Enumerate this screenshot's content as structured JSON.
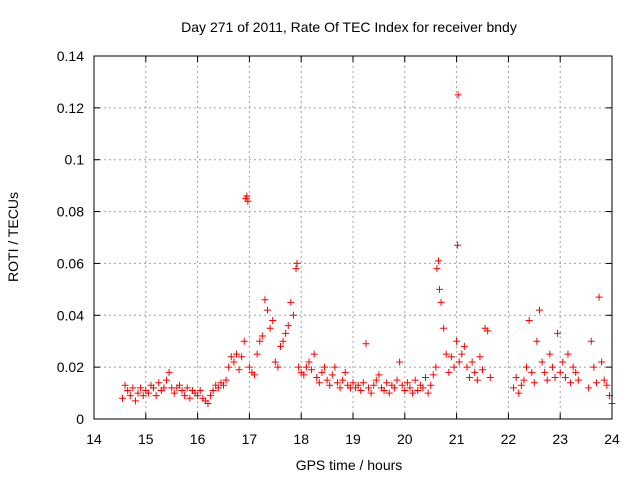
{
  "chart_data": {
    "type": "scatter",
    "title": "Day 271 of 2011, Rate Of TEC Index for receiver bndy",
    "xlabel": "GPS time / hours",
    "ylabel": "ROTI / TECUs",
    "xlim": [
      14,
      24
    ],
    "ylim": [
      0,
      0.14
    ],
    "x_ticks": [
      "14",
      "15",
      "16",
      "17",
      "18",
      "19",
      "20",
      "21",
      "22",
      "23",
      "24"
    ],
    "y_ticks": [
      "0",
      "0.02",
      "0.04",
      "0.06",
      "0.08",
      "0.1",
      "0.12",
      "0.14"
    ],
    "grid": true,
    "marker": "plus",
    "color": "#ff0000",
    "series": [
      {
        "points": [
          [
            14.55,
            0.008
          ],
          [
            14.6,
            0.013
          ],
          [
            14.65,
            0.011
          ],
          [
            14.7,
            0.009
          ],
          [
            14.75,
            0.012
          ],
          [
            14.8,
            0.007
          ],
          [
            14.85,
            0.01
          ],
          [
            14.9,
            0.012
          ],
          [
            14.95,
            0.009
          ],
          [
            15.0,
            0.011
          ],
          [
            15.05,
            0.01
          ],
          [
            15.1,
            0.013
          ],
          [
            15.15,
            0.012
          ],
          [
            15.2,
            0.009
          ],
          [
            15.25,
            0.014
          ],
          [
            15.3,
            0.011
          ],
          [
            15.35,
            0.012
          ],
          [
            15.4,
            0.015
          ],
          [
            15.45,
            0.018
          ],
          [
            15.5,
            0.012
          ],
          [
            15.55,
            0.01
          ],
          [
            15.6,
            0.012
          ],
          [
            15.65,
            0.013
          ],
          [
            15.7,
            0.011
          ],
          [
            15.75,
            0.009
          ],
          [
            15.8,
            0.012
          ],
          [
            15.85,
            0.008
          ],
          [
            15.9,
            0.011
          ],
          [
            15.95,
            0.01
          ],
          [
            16.0,
            0.009
          ],
          [
            16.05,
            0.011
          ],
          [
            16.1,
            0.008
          ],
          [
            16.15,
            0.007
          ],
          [
            16.2,
            0.006
          ],
          [
            16.25,
            0.009
          ],
          [
            16.3,
            0.011
          ],
          [
            16.35,
            0.013
          ],
          [
            16.4,
            0.012
          ],
          [
            16.45,
            0.014
          ],
          [
            16.5,
            0.013
          ],
          [
            16.55,
            0.015
          ],
          [
            16.6,
            0.02
          ],
          [
            16.65,
            0.024
          ],
          [
            16.7,
            0.022
          ],
          [
            16.75,
            0.025
          ],
          [
            16.8,
            0.019
          ],
          [
            16.85,
            0.024
          ],
          [
            16.9,
            0.03
          ],
          [
            16.93,
            0.085
          ],
          [
            16.95,
            0.086
          ],
          [
            16.97,
            0.084
          ],
          [
            17.0,
            0.02
          ],
          [
            17.05,
            0.018
          ],
          [
            17.1,
            0.017
          ],
          [
            17.15,
            0.025
          ],
          [
            17.2,
            0.03
          ],
          [
            17.25,
            0.032
          ],
          [
            17.3,
            0.046
          ],
          [
            17.35,
            0.042
          ],
          [
            17.4,
            0.035
          ],
          [
            17.45,
            0.038
          ],
          [
            17.5,
            0.022
          ],
          [
            17.55,
            0.02
          ],
          [
            17.6,
            0.028
          ],
          [
            17.65,
            0.03
          ],
          [
            17.7,
            0.033
          ],
          [
            17.75,
            0.036
          ],
          [
            17.8,
            0.045
          ],
          [
            17.85,
            0.04
          ],
          [
            17.9,
            0.058
          ],
          [
            17.92,
            0.06
          ],
          [
            17.95,
            0.02
          ],
          [
            18.0,
            0.018
          ],
          [
            18.05,
            0.017
          ],
          [
            18.1,
            0.02
          ],
          [
            18.15,
            0.022
          ],
          [
            18.2,
            0.019
          ],
          [
            18.25,
            0.025
          ],
          [
            18.3,
            0.016
          ],
          [
            18.35,
            0.014
          ],
          [
            18.4,
            0.018
          ],
          [
            18.45,
            0.02
          ],
          [
            18.5,
            0.015
          ],
          [
            18.55,
            0.013
          ],
          [
            18.6,
            0.017
          ],
          [
            18.65,
            0.02
          ],
          [
            18.7,
            0.014
          ],
          [
            18.75,
            0.012
          ],
          [
            18.8,
            0.015
          ],
          [
            18.85,
            0.018
          ],
          [
            18.9,
            0.013
          ],
          [
            18.95,
            0.012
          ],
          [
            19.0,
            0.014
          ],
          [
            19.05,
            0.012
          ],
          [
            19.1,
            0.013
          ],
          [
            19.15,
            0.011
          ],
          [
            19.2,
            0.014
          ],
          [
            19.25,
            0.029
          ],
          [
            19.3,
            0.012
          ],
          [
            19.35,
            0.01
          ],
          [
            19.4,
            0.013
          ],
          [
            19.45,
            0.015
          ],
          [
            19.5,
            0.017
          ],
          [
            19.55,
            0.012
          ],
          [
            19.6,
            0.011
          ],
          [
            19.65,
            0.014
          ],
          [
            19.7,
            0.01
          ],
          [
            19.75,
            0.013
          ],
          [
            19.8,
            0.012
          ],
          [
            19.85,
            0.015
          ],
          [
            19.9,
            0.022
          ],
          [
            19.95,
            0.013
          ],
          [
            20.0,
            0.011
          ],
          [
            20.05,
            0.014
          ],
          [
            20.1,
            0.012
          ],
          [
            20.15,
            0.01
          ],
          [
            20.2,
            0.015
          ],
          [
            20.25,
            0.011
          ],
          [
            20.3,
            0.013
          ],
          [
            20.35,
            0.012
          ],
          [
            20.4,
            0.016
          ],
          [
            20.45,
            0.01
          ],
          [
            20.5,
            0.013
          ],
          [
            20.55,
            0.017
          ],
          [
            20.6,
            0.02
          ],
          [
            20.62,
            0.058
          ],
          [
            20.65,
            0.061
          ],
          [
            20.67,
            0.05
          ],
          [
            20.7,
            0.045
          ],
          [
            20.75,
            0.035
          ],
          [
            20.8,
            0.025
          ],
          [
            20.85,
            0.018
          ],
          [
            20.9,
            0.024
          ],
          [
            20.95,
            0.02
          ],
          [
            21.0,
            0.03
          ],
          [
            21.02,
            0.067
          ],
          [
            21.03,
            0.125
          ],
          [
            21.05,
            0.022
          ],
          [
            21.1,
            0.025
          ],
          [
            21.15,
            0.028
          ],
          [
            21.2,
            0.02
          ],
          [
            21.25,
            0.016
          ],
          [
            21.3,
            0.022
          ],
          [
            21.35,
            0.018
          ],
          [
            21.4,
            0.015
          ],
          [
            21.45,
            0.024
          ],
          [
            21.5,
            0.019
          ],
          [
            21.55,
            0.035
          ],
          [
            21.6,
            0.034
          ],
          [
            21.65,
            0.016
          ],
          [
            22.1,
            0.012
          ],
          [
            22.15,
            0.016
          ],
          [
            22.2,
            0.01
          ],
          [
            22.25,
            0.013
          ],
          [
            22.3,
            0.015
          ],
          [
            22.35,
            0.02
          ],
          [
            22.4,
            0.038
          ],
          [
            22.45,
            0.018
          ],
          [
            22.5,
            0.014
          ],
          [
            22.55,
            0.03
          ],
          [
            22.6,
            0.042
          ],
          [
            22.65,
            0.022
          ],
          [
            22.7,
            0.018
          ],
          [
            22.75,
            0.015
          ],
          [
            22.8,
            0.025
          ],
          [
            22.85,
            0.02
          ],
          [
            22.9,
            0.016
          ],
          [
            22.95,
            0.033
          ],
          [
            23.0,
            0.018
          ],
          [
            23.05,
            0.022
          ],
          [
            23.1,
            0.016
          ],
          [
            23.15,
            0.025
          ],
          [
            23.2,
            0.014
          ],
          [
            23.25,
            0.02
          ],
          [
            23.3,
            0.018
          ],
          [
            23.35,
            0.015
          ],
          [
            23.55,
            0.012
          ],
          [
            23.6,
            0.03
          ],
          [
            23.65,
            0.02
          ],
          [
            23.7,
            0.014
          ],
          [
            23.75,
            0.047
          ],
          [
            23.8,
            0.022
          ],
          [
            23.85,
            0.015
          ],
          [
            23.9,
            0.013
          ],
          [
            23.95,
            0.009
          ],
          [
            24.0,
            0.006
          ]
        ]
      }
    ]
  }
}
